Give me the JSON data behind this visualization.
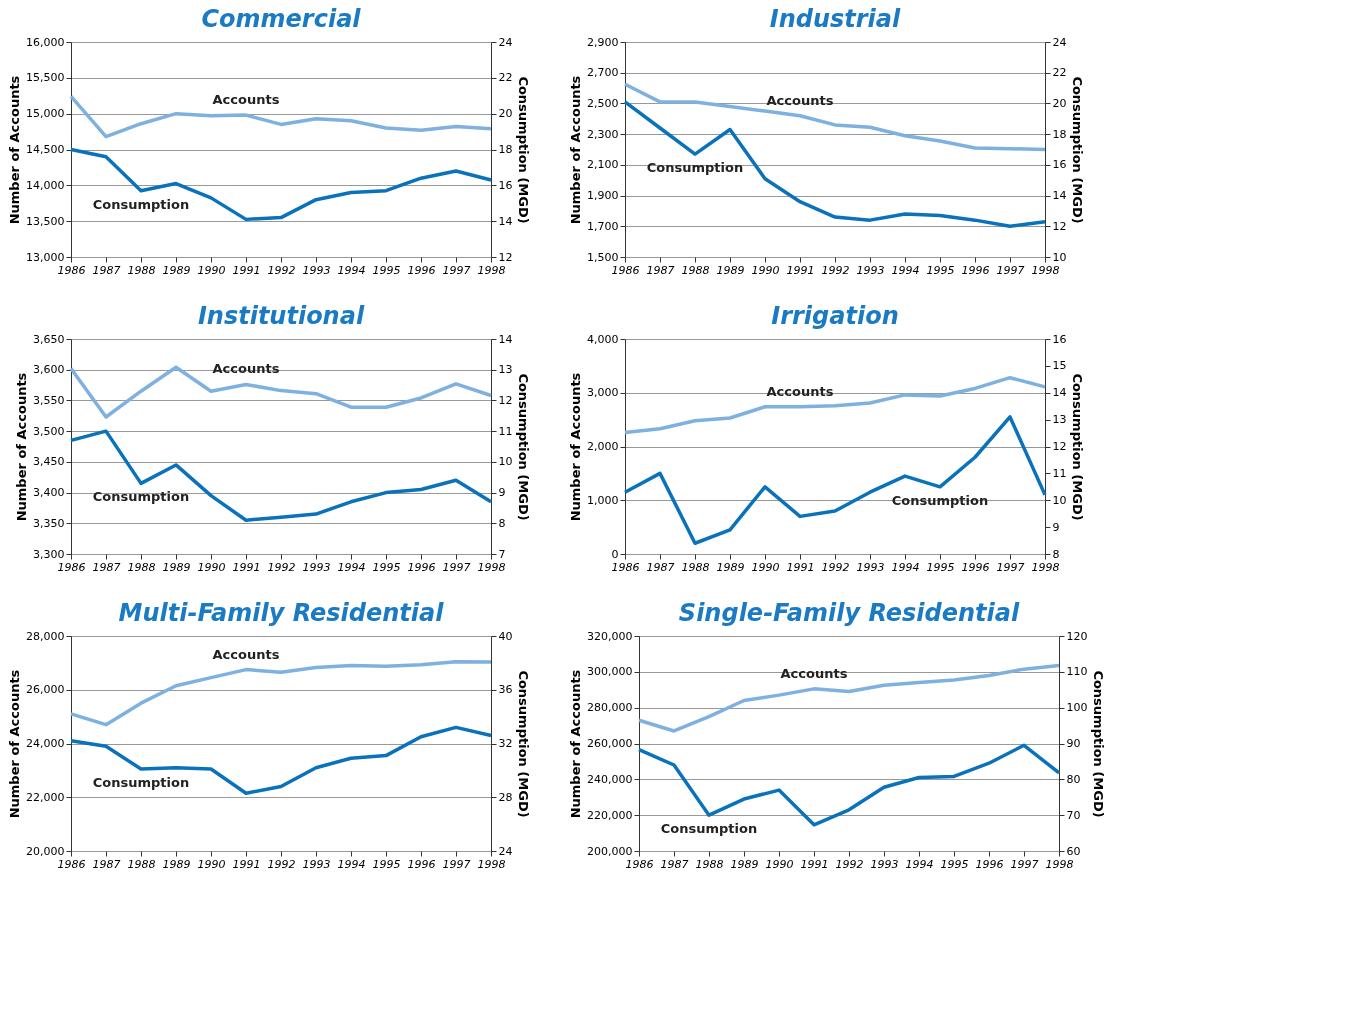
{
  "chart_data": [
    {
      "type": "line",
      "title": "Commercial",
      "ylabel": "Number of Accounts",
      "y2label": "Consumption (MGD)",
      "grid": "y",
      "categories": [
        "1986",
        "1987",
        "1988",
        "1989",
        "1990",
        "1991",
        "1992",
        "1993",
        "1994",
        "1995",
        "1996",
        "1997",
        "1998"
      ],
      "ylim": [
        13000,
        16000
      ],
      "yticks": [
        {
          "value": 13000,
          "label": "13,000"
        },
        {
          "value": 13500,
          "label": "13,500"
        },
        {
          "value": 14000,
          "label": "14,000"
        },
        {
          "value": 14500,
          "label": "14,500"
        },
        {
          "value": 15000,
          "label": "15,000"
        },
        {
          "value": 15500,
          "label": "15,500"
        },
        {
          "value": 16000,
          "label": "16,000"
        }
      ],
      "y2lim": [
        12,
        24
      ],
      "y2ticks": [
        12,
        14,
        16,
        18,
        20,
        22,
        24
      ],
      "series": [
        {
          "name": "Accounts",
          "color": "#7eb0e0",
          "values": [
            15240,
            14680,
            14860,
            15000,
            14970,
            14980,
            14850,
            14930,
            14900,
            14800,
            14770,
            14820,
            14790
          ]
        },
        {
          "name": "Consumption",
          "color": "#0a72bb",
          "axis": "y2",
          "values": [
            18,
            17.6,
            15.7,
            16.1,
            15.3,
            14.1,
            14.2,
            15.2,
            15.6,
            15.7,
            16.4,
            16.8,
            16.3
          ]
        }
      ]
    },
    {
      "type": "line",
      "title": "Industrial",
      "ylabel": "Number of Accounts",
      "y2label": "Consumption (MGD)",
      "grid": "y",
      "categories": [
        "1986",
        "1987",
        "1988",
        "1989",
        "1990",
        "1991",
        "1992",
        "1993",
        "1994",
        "1995",
        "1996",
        "1997",
        "1998"
      ],
      "ylim": [
        1500,
        2900
      ],
      "yticks": [
        {
          "value": 1500,
          "label": "1,500"
        },
        {
          "value": 1700,
          "label": "1,700"
        },
        {
          "value": 1900,
          "label": "1,900"
        },
        {
          "value": 2100,
          "label": "2,100"
        },
        {
          "value": 2300,
          "label": "2,300"
        },
        {
          "value": 2500,
          "label": "2,500"
        },
        {
          "value": 2700,
          "label": "2,700"
        },
        {
          "value": 2900,
          "label": "2,900"
        }
      ],
      "y2lim": [
        10,
        24
      ],
      "y2ticks": [
        10,
        12,
        14,
        16,
        18,
        20,
        22,
        24
      ],
      "series": [
        {
          "name": "Accounts",
          "color": "#7eb0e0",
          "values": [
            2625,
            2510,
            2510,
            2480,
            2450,
            2420,
            2360,
            2345,
            2290,
            2255,
            2210,
            2205,
            2200
          ]
        },
        {
          "name": "Consumption",
          "color": "#0a72bb",
          "axis": "y2",
          "values": [
            20.1,
            18.4,
            16.7,
            18.3,
            15.1,
            13.6,
            12.6,
            12.4,
            12.8,
            12.7,
            12.4,
            12.0,
            12.3
          ]
        }
      ]
    },
    {
      "type": "line",
      "title": "Institutional",
      "ylabel": "Number of Accounts",
      "y2label": "Consumption (MGD)",
      "grid": "y",
      "categories": [
        "1986",
        "1987",
        "1988",
        "1989",
        "1990",
        "1991",
        "1992",
        "1993",
        "1994",
        "1995",
        "1996",
        "1997",
        "1998"
      ],
      "ylim": [
        3300,
        3650
      ],
      "yticks": [
        {
          "value": 3300,
          "label": "3,300"
        },
        {
          "value": 3350,
          "label": "3,350"
        },
        {
          "value": 3400,
          "label": "3,400"
        },
        {
          "value": 3450,
          "label": "3,450"
        },
        {
          "value": 3500,
          "label": "3,500"
        },
        {
          "value": 3550,
          "label": "3,550"
        },
        {
          "value": 3600,
          "label": "3,600"
        },
        {
          "value": 3650,
          "label": "3,650"
        }
      ],
      "y2lim": [
        7,
        14
      ],
      "y2ticks": [
        7,
        8,
        9,
        10,
        11,
        12,
        13,
        14
      ],
      "series": [
        {
          "name": "Accounts",
          "color": "#7eb0e0",
          "values": [
            3602,
            3523,
            3565,
            3604,
            3565,
            3576,
            3566,
            3561,
            3539,
            3539,
            3554,
            3577,
            3558
          ]
        },
        {
          "name": "Consumption",
          "color": "#0a72bb",
          "axis": "y2",
          "values": [
            10.7,
            11.0,
            9.3,
            9.9,
            8.9,
            8.1,
            8.2,
            8.3,
            8.7,
            9.0,
            9.1,
            9.4,
            8.7
          ]
        }
      ]
    },
    {
      "type": "line",
      "title": "Irrigation",
      "ylabel": "Number of Accounts",
      "y2label": "Consumption (MGD)",
      "grid": "y",
      "categories": [
        "1986",
        "1987",
        "1988",
        "1989",
        "1990",
        "1991",
        "1992",
        "1993",
        "1994",
        "1995",
        "1996",
        "1997",
        "1998"
      ],
      "ylim": [
        0,
        4000
      ],
      "yticks": [
        0,
        {
          "value": 1000,
          "label": "1,000"
        },
        {
          "value": 2000,
          "label": "2,000"
        },
        {
          "value": 3000,
          "label": "3,000"
        },
        {
          "value": 4000,
          "label": "4,000"
        }
      ],
      "y2lim": [
        8,
        16
      ],
      "y2ticks": [
        8,
        9,
        10,
        11,
        12,
        13,
        14,
        15,
        16
      ],
      "series": [
        {
          "name": "Accounts",
          "color": "#7eb0e0",
          "values": [
            2260,
            2330,
            2480,
            2530,
            2740,
            2740,
            2760,
            2810,
            2960,
            2940,
            3080,
            3280,
            3110
          ]
        },
        {
          "name": "Consumption",
          "color": "#0a72bb",
          "axis": "y2",
          "values": [
            10.3,
            11.0,
            8.4,
            8.9,
            10.5,
            9.4,
            9.6,
            10.3,
            10.9,
            10.5,
            11.6,
            13.1,
            10.2
          ]
        }
      ]
    },
    {
      "type": "line",
      "title": "Multi-Family Residential",
      "ylabel": "Number of Accounts",
      "y2label": "Consumption (MGD)",
      "grid": "y",
      "categories": [
        "1986",
        "1987",
        "1988",
        "1989",
        "1990",
        "1991",
        "1992",
        "1993",
        "1994",
        "1995",
        "1996",
        "1997",
        "1998"
      ],
      "ylim": [
        20000,
        28000
      ],
      "yticks": [
        {
          "value": 20000,
          "label": "20,000"
        },
        {
          "value": 22000,
          "label": "22,000"
        },
        {
          "value": 24000,
          "label": "24,000"
        },
        {
          "value": 26000,
          "label": "26,000"
        },
        {
          "value": 28000,
          "label": "28,000"
        }
      ],
      "y2lim": [
        24,
        40
      ],
      "y2ticks": [
        24,
        28,
        32,
        36,
        40
      ],
      "series": [
        {
          "name": "Accounts",
          "color": "#7eb0e0",
          "values": [
            25100,
            24700,
            25500,
            26150,
            26450,
            26750,
            26650,
            26830,
            26900,
            26870,
            26930,
            27040,
            27030
          ]
        },
        {
          "name": "Consumption",
          "color": "#0a72bb",
          "axis": "y2",
          "values": [
            32.2,
            31.8,
            30.1,
            30.2,
            30.1,
            28.3,
            28.8,
            30.2,
            30.9,
            31.1,
            32.5,
            33.2,
            32.6
          ]
        }
      ]
    },
    {
      "type": "line",
      "title": "Single-Family Residential",
      "ylabel": "Number of Accounts",
      "y2label": "Consumption (MGD)",
      "grid": "y",
      "categories": [
        "1986",
        "1987",
        "1988",
        "1989",
        "1990",
        "1991",
        "1992",
        "1993",
        "1994",
        "1995",
        "1996",
        "1997",
        "1998"
      ],
      "ylim": [
        200000,
        320000
      ],
      "yticks": [
        {
          "value": 200000,
          "label": "200,000"
        },
        {
          "value": 220000,
          "label": "220,000"
        },
        {
          "value": 240000,
          "label": "240,000"
        },
        {
          "value": 260000,
          "label": "260,000"
        },
        {
          "value": 280000,
          "label": "280,000"
        },
        {
          "value": 300000,
          "label": "300,000"
        },
        {
          "value": 320000,
          "label": "320,000"
        }
      ],
      "y2lim": [
        60,
        120
      ],
      "y2ticks": [
        60,
        70,
        80,
        90,
        100,
        110,
        120
      ],
      "series": [
        {
          "name": "Accounts",
          "color": "#7eb0e0",
          "values": [
            273000,
            267000,
            275000,
            284000,
            287000,
            290500,
            289000,
            292500,
            294000,
            295500,
            298000,
            301500,
            303500
          ]
        },
        {
          "name": "Consumption",
          "color": "#0a72bb",
          "axis": "y2",
          "values": [
            88.3,
            84,
            70,
            74.5,
            77,
            67.3,
            71.5,
            77.8,
            80.5,
            80.8,
            84.5,
            89.5,
            81.8
          ]
        }
      ]
    }
  ]
}
